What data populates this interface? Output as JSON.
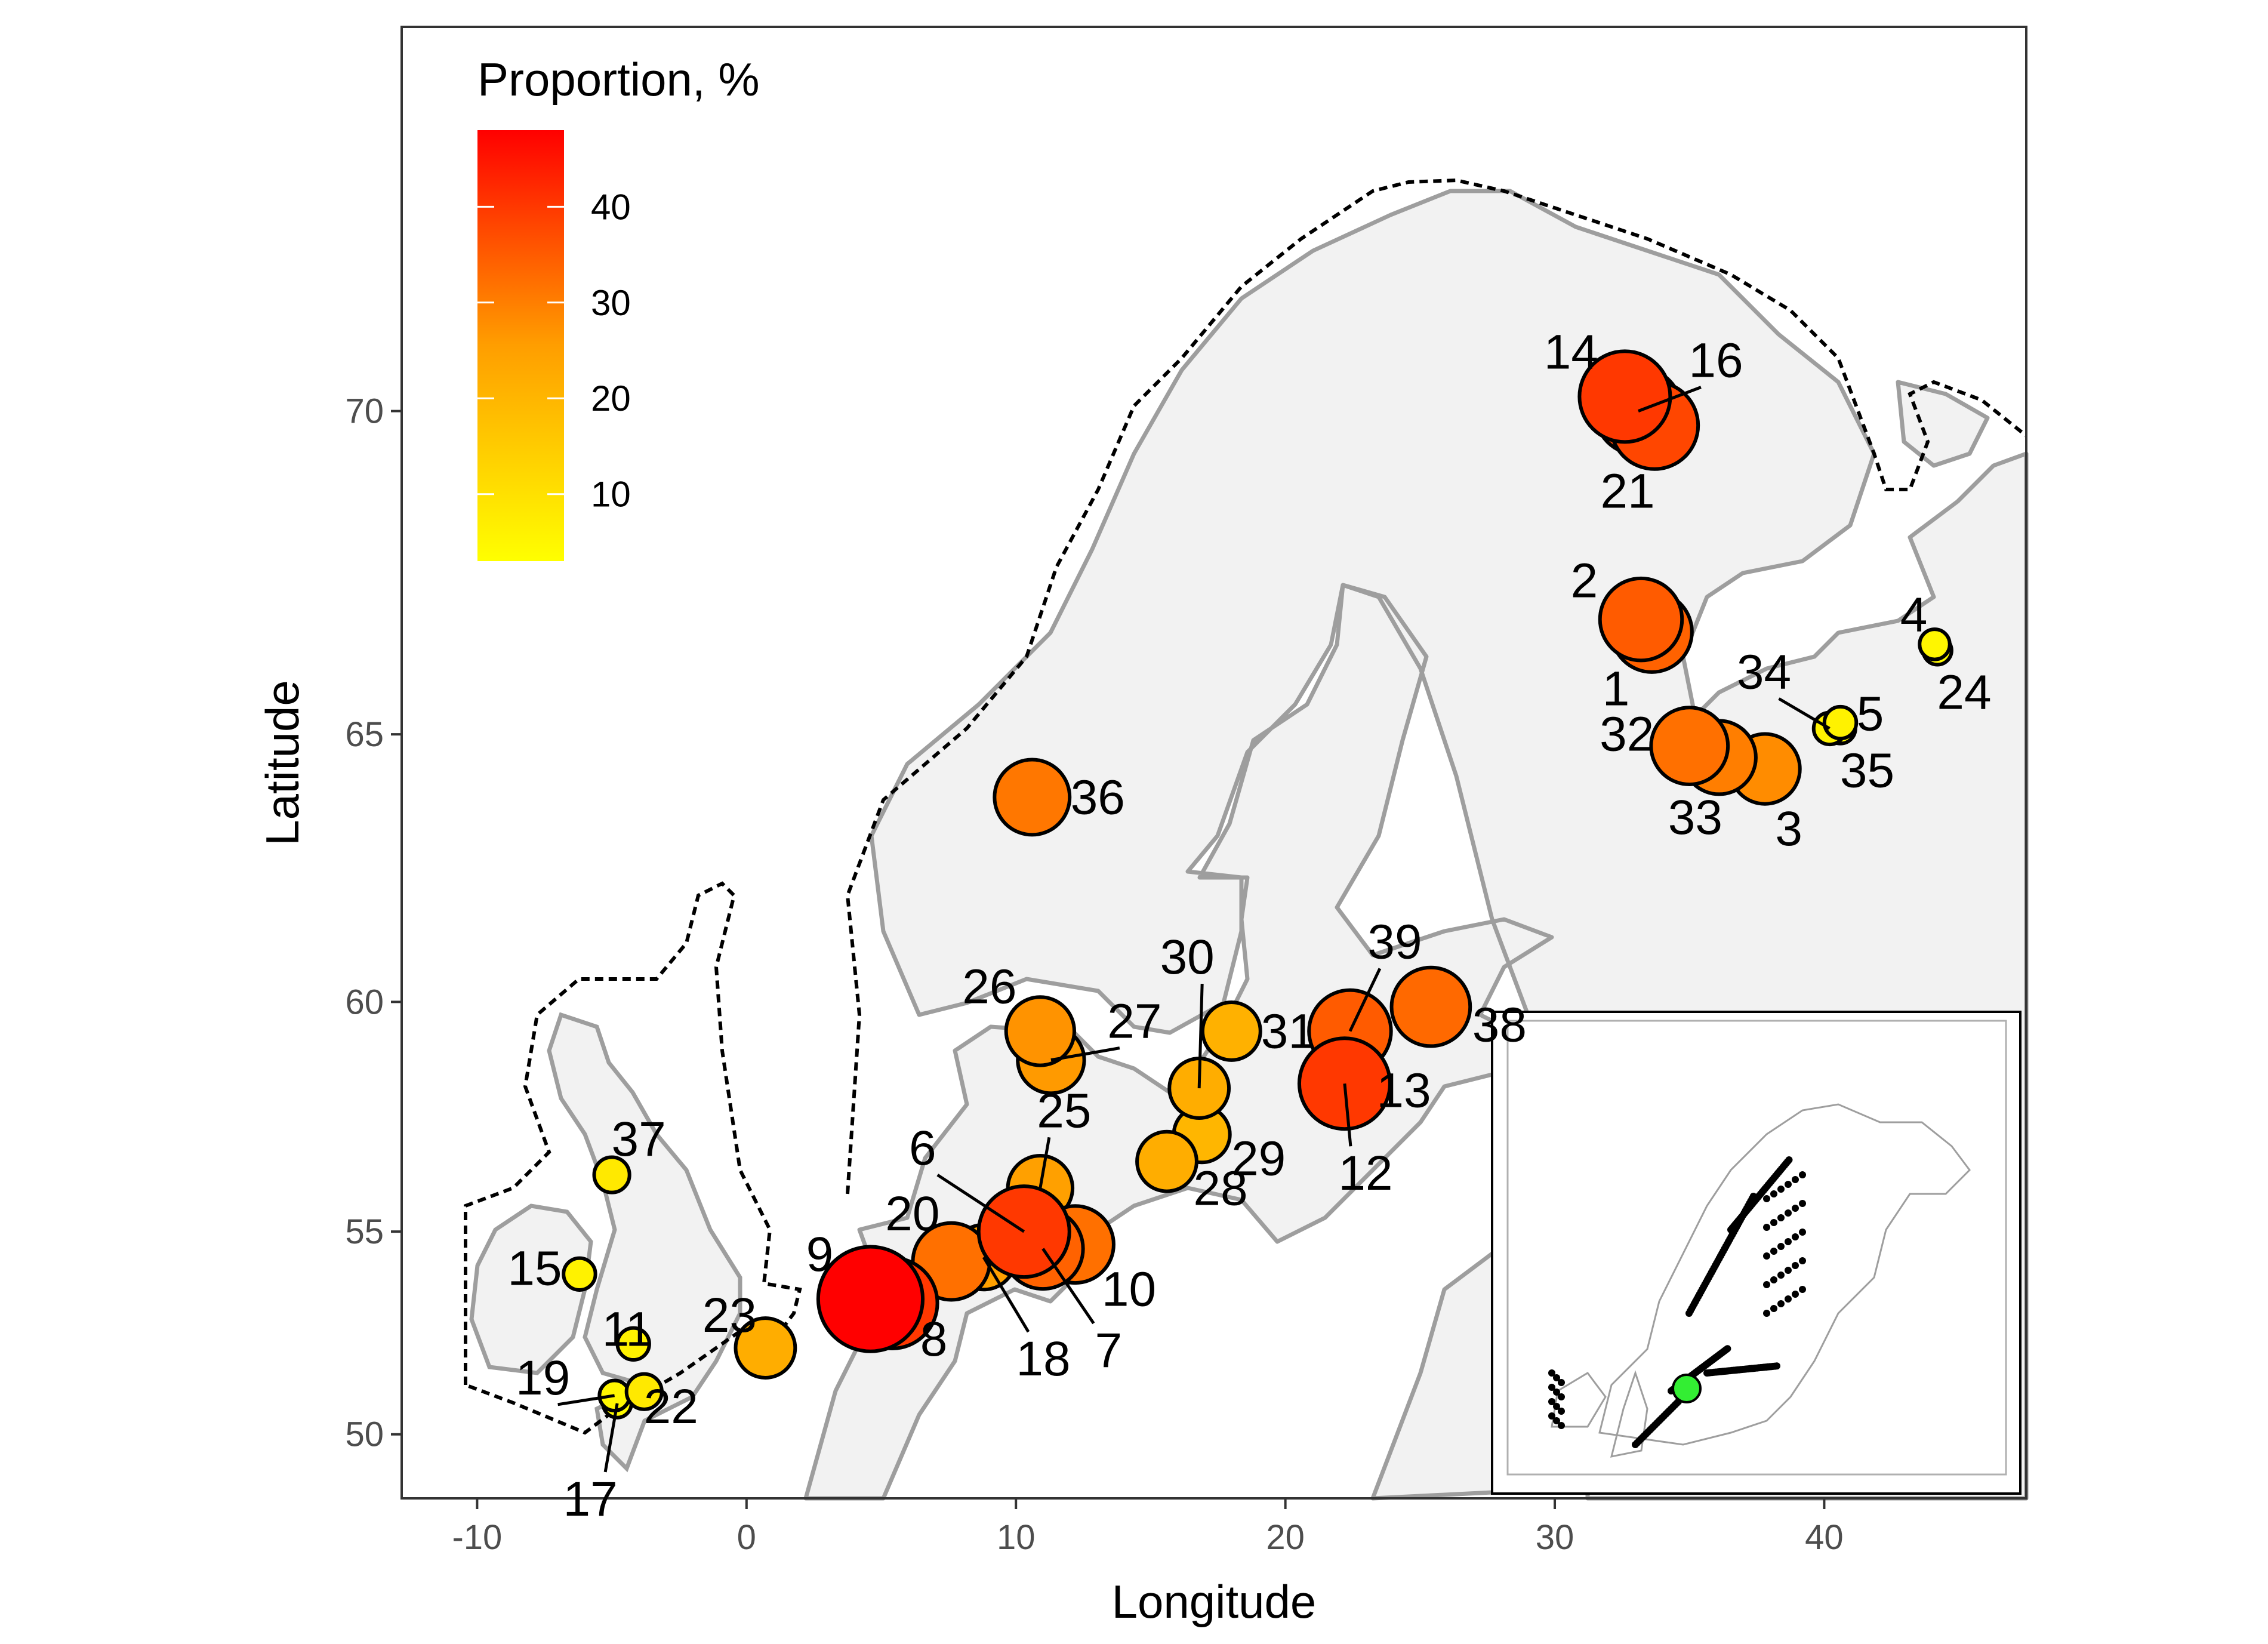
{
  "axes": {
    "xlabel": "Longitude",
    "ylabel": "Latitude",
    "x_ticks": [
      "-10",
      "0",
      "10",
      "20",
      "30",
      "40"
    ],
    "y_ticks": [
      "50",
      "55",
      "60",
      "65",
      "70"
    ],
    "xlim": [
      -12.8,
      47.5
    ],
    "ylim": [
      48.3,
      74.7
    ]
  },
  "legend": {
    "title": "Proportion, %",
    "ticks": [
      "10",
      "20",
      "30",
      "40"
    ],
    "tick_values": [
      10,
      20,
      30,
      40
    ],
    "range": [
      3,
      48
    ],
    "color_low": "#ffff00",
    "color_mid": "#ff9e00",
    "color_high": "#ff0000"
  },
  "colors": {
    "panel_border": "#333333",
    "land": "#f2f2f2",
    "coast": "#9e9e9e",
    "boundary": "#000000",
    "inset_highlight": "#33ee33"
  },
  "sites": [
    {
      "id": "1",
      "lon": 33.6,
      "lat": 66.7,
      "pct": 34
    },
    {
      "id": "2",
      "lon": 33.2,
      "lat": 66.9,
      "pct": 35
    },
    {
      "id": "3",
      "lon": 37.8,
      "lat": 64.4,
      "pct": 28
    },
    {
      "id": "4",
      "lon": 44.1,
      "lat": 66.5,
      "pct": 5
    },
    {
      "id": "5",
      "lon": 40.6,
      "lat": 65.1,
      "pct": 5
    },
    {
      "id": "6",
      "lon": 10.3,
      "lat": 55.0,
      "pct": 40
    },
    {
      "id": "7",
      "lon": 11.0,
      "lat": 54.6,
      "pct": 34
    },
    {
      "id": "8",
      "lon": 5.4,
      "lat": 53.3,
      "pct": 40
    },
    {
      "id": "9",
      "lon": 4.6,
      "lat": 53.4,
      "pct": 48
    },
    {
      "id": "10",
      "lon": 12.2,
      "lat": 54.7,
      "pct": 32
    },
    {
      "id": "11",
      "lon": -4.2,
      "lat": 52.3,
      "pct": 6
    },
    {
      "id": "12",
      "lon": 22.2,
      "lat": 58.3,
      "pct": 40
    },
    {
      "id": "13",
      "lon": 22.4,
      "lat": 58.6,
      "pct": 25
    },
    {
      "id": "14",
      "lon": 32.6,
      "lat": 70.2,
      "pct": 40
    },
    {
      "id": "15",
      "lon": -6.2,
      "lat": 54.0,
      "pct": 6
    },
    {
      "id": "16",
      "lon": 33.1,
      "lat": 70.0,
      "pct": 38
    },
    {
      "id": "17",
      "lon": -4.8,
      "lat": 50.8,
      "pct": 4
    },
    {
      "id": "18",
      "lon": 8.8,
      "lat": 54.4,
      "pct": 25
    },
    {
      "id": "19",
      "lon": -4.9,
      "lat": 51.0,
      "pct": 5
    },
    {
      "id": "20",
      "lon": 7.6,
      "lat": 54.3,
      "pct": 32
    },
    {
      "id": "21",
      "lon": 33.7,
      "lat": 69.8,
      "pct": 38
    },
    {
      "id": "22",
      "lon": -3.8,
      "lat": 51.1,
      "pct": 8
    },
    {
      "id": "23",
      "lon": 0.7,
      "lat": 52.2,
      "pct": 22
    },
    {
      "id": "24",
      "lon": 44.2,
      "lat": 66.4,
      "pct": 4
    },
    {
      "id": "25",
      "lon": 10.9,
      "lat": 56.0,
      "pct": 25
    },
    {
      "id": "26",
      "lon": 10.9,
      "lat": 59.4,
      "pct": 27
    },
    {
      "id": "27",
      "lon": 11.3,
      "lat": 58.8,
      "pct": 26
    },
    {
      "id": "28",
      "lon": 15.6,
      "lat": 56.6,
      "pct": 22
    },
    {
      "id": "29",
      "lon": 16.9,
      "lat": 57.2,
      "pct": 20
    },
    {
      "id": "30",
      "lon": 16.8,
      "lat": 58.2,
      "pct": 22
    },
    {
      "id": "31",
      "lon": 18.0,
      "lat": 59.4,
      "pct": 21
    },
    {
      "id": "32",
      "lon": 35.0,
      "lat": 64.8,
      "pct": 32
    },
    {
      "id": "33",
      "lon": 36.1,
      "lat": 64.6,
      "pct": 30
    },
    {
      "id": "34",
      "lon": 40.2,
      "lat": 65.1,
      "pct": 6
    },
    {
      "id": "35",
      "lon": 40.6,
      "lat": 65.2,
      "pct": 6
    },
    {
      "id": "36",
      "lon": 10.6,
      "lat": 63.9,
      "pct": 31
    },
    {
      "id": "37",
      "lon": -5.0,
      "lat": 56.3,
      "pct": 8
    },
    {
      "id": "38",
      "lon": 25.4,
      "lat": 59.9,
      "pct": 33
    },
    {
      "id": "39",
      "lon": 22.4,
      "lat": 59.4,
      "pct": 35
    }
  ]
}
